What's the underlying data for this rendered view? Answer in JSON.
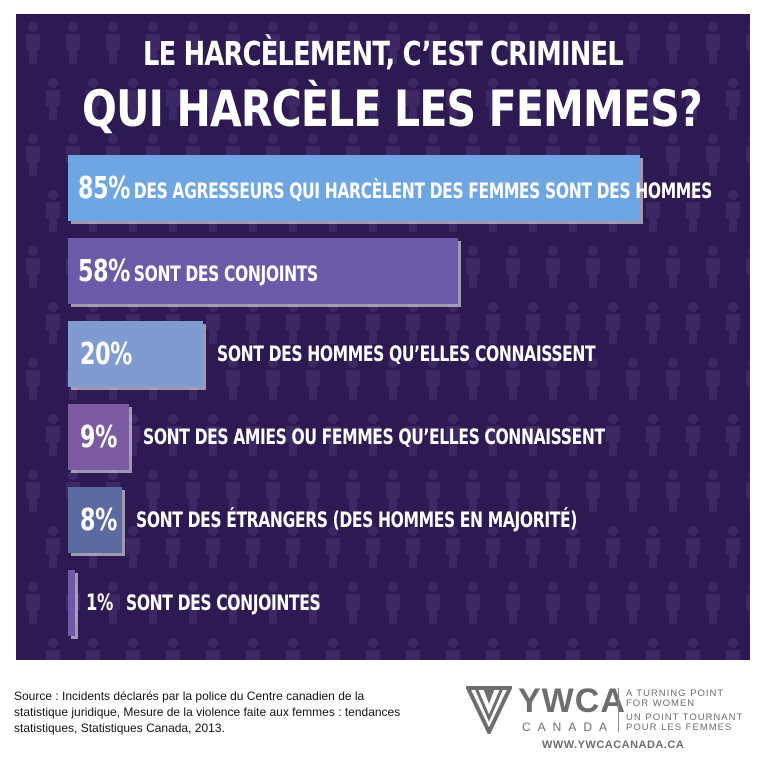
{
  "title_line_1": "LE HARCÈLEMENT, C’EST CRIMINEL",
  "title_line_2": "QUI HARCÈLE LES FEMMES?",
  "chart_data": {
    "type": "bar",
    "orientation": "horizontal",
    "xlim": [
      0,
      85
    ],
    "bars": [
      {
        "value": 85,
        "value_label": "85%",
        "text": "DES AGRESSEURS QUI HARCÈLENT DES FEMMES SONT DES HOMMES",
        "color": "#6ea5e3"
      },
      {
        "value": 58,
        "value_label": "58%",
        "text": "SONT DES CONJOINTS",
        "color": "#6b5aa8"
      },
      {
        "value": 20,
        "value_label": "20%",
        "text": "SONT DES HOMMES QU’ELLES CONNAISSENT",
        "color": "#7f9bd0"
      },
      {
        "value": 9,
        "value_label": "9%",
        "text": "SONT DES AMIES OU FEMMES QU’ELLES CONNAISSENT",
        "color": "#7d5ba3"
      },
      {
        "value": 8,
        "value_label": "8%",
        "text": "SONT DES ÉTRANGERS (DES HOMMES EN MAJORITÉ)",
        "color": "#5b6aa0"
      },
      {
        "value": 1,
        "value_label": "1%",
        "text": "SONT DES CONJOINTES",
        "color": "#6b5aa8"
      }
    ]
  },
  "source": "Source : Incidents déclarés par la police du Centre canadien de la statistique juridique, Mesure de la violence faite aux femmes : tendances statistiques, Statistiques Canada, 2013.",
  "logo": {
    "name": "YWCA",
    "country": "CANADA",
    "tagline_en_1": "A TURNING POINT",
    "tagline_en_2": "FOR WOMEN",
    "tagline_fr_1": "UN POINT TOURNANT",
    "tagline_fr_2": "POUR LES FEMMES",
    "url": "WWW.YWCACANADA.CA"
  }
}
